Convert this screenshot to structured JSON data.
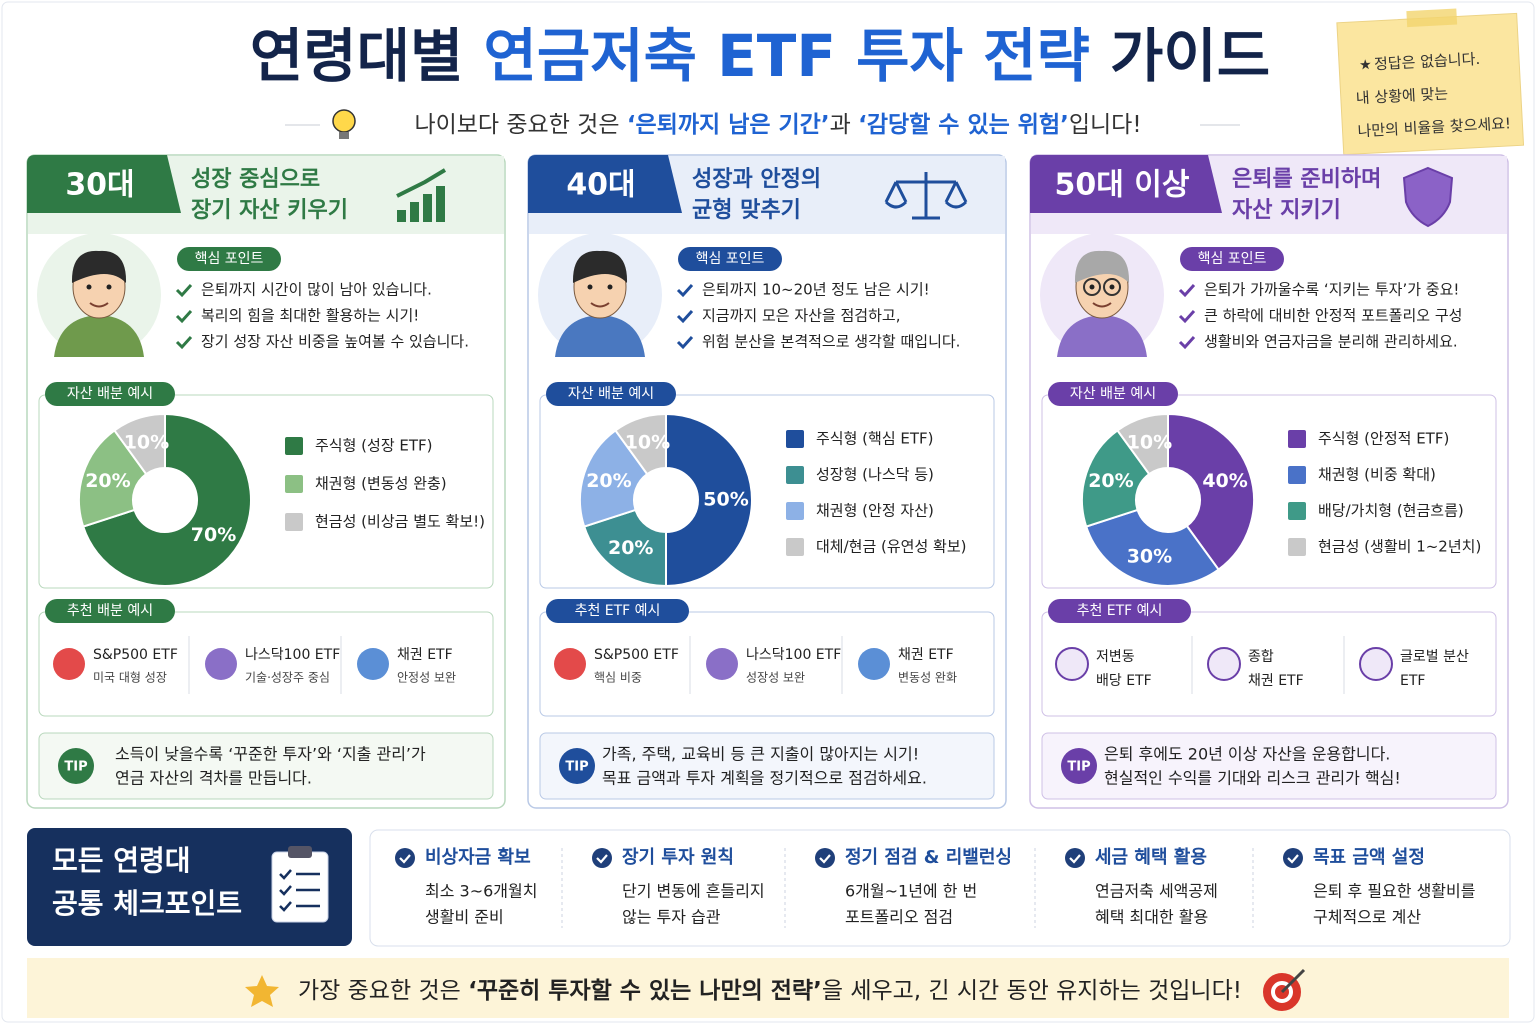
{
  "header": {
    "title": [
      "연령대별 ",
      "연금저축 ETF 투자 전략",
      " 가이드"
    ],
    "subtitle": [
      "나이보다 중요한 것은 ",
      "‘은퇴까지 남은 기간’",
      "과 ",
      "‘감당할 수 있는 위험’",
      "입니다!"
    ]
  },
  "note": {
    "lines": [
      "정답은 없습니다.",
      "내 상황에 맞는",
      "나만의 비율을 찾으세요!"
    ]
  },
  "columns": [
    {
      "age": "30대",
      "heading": [
        "성장 중심으로",
        "장기 자산 키우기"
      ],
      "key_label": "핵심 포인트",
      "points": [
        "은퇴까지 시간이 많이 남아 있습니다.",
        "복리의 힘을 최대한 활용하는 시기!",
        "장기 성장 자산 비중을 높여볼 수 있습니다."
      ],
      "alloc_label": "자산 배분 예시",
      "chart": {
        "type": "pie",
        "categories": [
          "주식형 (성장 ETF)",
          "채권형 (변동성 완충)",
          "현금성 (비상금 별도 확보!)"
        ],
        "values": [
          70,
          20,
          10
        ],
        "value_labels": [
          "70%",
          "20%",
          "10%"
        ],
        "colors": [
          "#2f7a45",
          "#8cc084",
          "#c9c9c9"
        ]
      },
      "etf_label": "추천 배분 예시",
      "etfs": [
        {
          "lines": [
            "S&P500 ETF",
            "미국 대형 성장"
          ]
        },
        {
          "lines": [
            "나스닥100 ETF",
            "기술·성장주 중심"
          ]
        },
        {
          "lines": [
            "채권 ETF",
            "안정성 보완"
          ]
        }
      ],
      "tip_badge": "TIP",
      "tip": [
        "소득이 낮을수록 ‘꾸준한 투자’와 ‘지출 관리’가",
        "연금 자산의 격차를 만듭니다."
      ]
    },
    {
      "age": "40대",
      "heading": [
        "성장과 안정의",
        "균형 맞추기"
      ],
      "key_label": "핵심 포인트",
      "points": [
        "은퇴까지 10~20년 정도 남은 시기!",
        "지금까지 모은 자산을 점검하고,",
        "위험 분산을 본격적으로 생각할 때입니다."
      ],
      "alloc_label": "자산 배분 예시",
      "chart": {
        "type": "pie",
        "categories": [
          "주식형 (핵심 ETF)",
          "성장형 (나스닥 등)",
          "채권형 (안정 자산)",
          "대체/현금 (유연성 확보)"
        ],
        "values": [
          50,
          20,
          20,
          10
        ],
        "value_labels": [
          "50%",
          "20%",
          "20%",
          "10%"
        ],
        "colors": [
          "#1f4e9c",
          "#3d8f92",
          "#8db1e6",
          "#c9c9c9"
        ]
      },
      "etf_label": "추천 ETF 예시",
      "etfs": [
        {
          "lines": [
            "S&P500 ETF",
            "핵심 비중"
          ]
        },
        {
          "lines": [
            "나스닥100 ETF",
            "성장성 보완"
          ]
        },
        {
          "lines": [
            "채권 ETF",
            "변동성 완화"
          ]
        }
      ],
      "tip_badge": "TIP",
      "tip": [
        "가족, 주택, 교육비 등 큰 지출이 많아지는 시기!",
        "목표 금액과 투자 계획을 정기적으로 점검하세요."
      ]
    },
    {
      "age": "50대 이상",
      "heading": [
        "은퇴를 준비하며",
        "자산 지키기"
      ],
      "key_label": "핵심 포인트",
      "points": [
        "은퇴가 가까울수록 ‘지키는 투자’가 중요!",
        "큰 하락에 대비한 안정적 포트폴리오 구성",
        "생활비와 연금자금을 분리해 관리하세요."
      ],
      "alloc_label": "자산 배분 예시",
      "chart": {
        "type": "pie",
        "categories": [
          "주식형 (안정적 ETF)",
          "채권형 (비중 확대)",
          "배당/가치형 (현금흐름)",
          "현금성 (생활비 1~2년치)"
        ],
        "values": [
          40,
          30,
          20,
          10
        ],
        "value_labels": [
          "40%",
          "30%",
          "20%",
          "10%"
        ],
        "colors": [
          "#6a3fa8",
          "#4a72c8",
          "#3f9a88",
          "#c9c9c9"
        ]
      },
      "etf_label": "추천 ETF 예시",
      "etfs": [
        {
          "lines": [
            "저변동",
            "배당 ETF"
          ]
        },
        {
          "lines": [
            "종합",
            "채권 ETF"
          ]
        },
        {
          "lines": [
            "글로벌 분산",
            "ETF"
          ]
        }
      ],
      "tip_badge": "TIP",
      "tip": [
        "은퇴 후에도 20년 이상 자산을 운용합니다.",
        "현실적인 수익를 기대와 리스크 관리가 핵심!"
      ]
    }
  ],
  "common": {
    "title": [
      "모든 연령대",
      "공통 체크포인트"
    ],
    "items": [
      {
        "title": "비상자금 확보",
        "lines": [
          "최소 3~6개월치",
          "생활비 준비"
        ]
      },
      {
        "title": "장기 투자 원칙",
        "lines": [
          "단기 변동에 흔들리지",
          "않는 투자 습관"
        ]
      },
      {
        "title": "정기 점검 & 리밸런싱",
        "lines": [
          "6개월~1년에 한 번",
          "포트폴리오 점검"
        ]
      },
      {
        "title": "세금 혜택 활용",
        "lines": [
          "연금저축 세액공제",
          "혜택 최대한 활용"
        ]
      },
      {
        "title": "목표 금액 설정",
        "lines": [
          "은퇴 후 필요한 생활비를",
          "구체적으로 계산"
        ]
      }
    ]
  },
  "footer": {
    "text": [
      "가장 중요한 것은 ",
      "‘꾸준히 투자할 수 있는 나만의 전략’",
      "을 세우고, 긴 시간 동안 유지하는 것입니다!"
    ]
  }
}
